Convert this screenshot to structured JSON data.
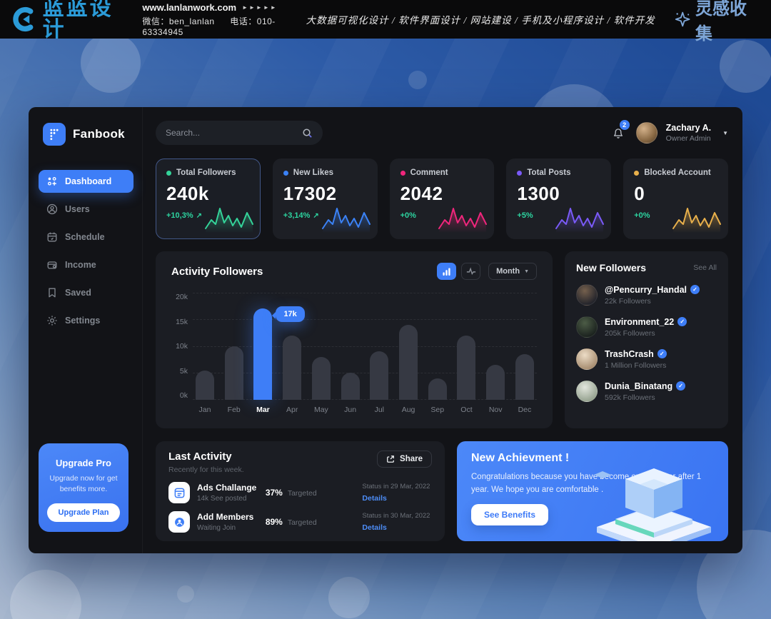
{
  "banner": {
    "brand": "蓝蓝设计",
    "website": "www.lanlanwork.com",
    "arrows": "►►►►►",
    "wechat": "微信：ben_lanlan",
    "phone": "电话：010-63334945",
    "services": "大数据可视化设计 / 软件界面设计 / 网站建设 / 手机及小程序设计 / 软件开发",
    "collect": "灵感收集"
  },
  "app": {
    "logo": "Fanbook",
    "search_placeholder": "Search...",
    "notification_count": "2",
    "user": {
      "name": "Zachary A.",
      "role": "Owner Admin"
    }
  },
  "sidebar": {
    "items": [
      {
        "label": "Dashboard",
        "icon": "dashboard-icon",
        "active": true
      },
      {
        "label": "Users",
        "icon": "users-icon",
        "active": false
      },
      {
        "label": "Schedule",
        "icon": "schedule-icon",
        "active": false
      },
      {
        "label": "Income",
        "icon": "income-icon",
        "active": false
      },
      {
        "label": "Saved",
        "icon": "saved-icon",
        "active": false
      },
      {
        "label": "Settings",
        "icon": "settings-icon",
        "active": false
      }
    ],
    "upgrade": {
      "title": "Upgrade Pro",
      "subtitle": "Upgrade now for get benefits more.",
      "button": "Upgrade Plan"
    }
  },
  "stats": {
    "cards": [
      {
        "label": "Total Followers",
        "value": "240k",
        "change": "+10,3%",
        "accent": "#34d399",
        "trend": true,
        "highlighted": true
      },
      {
        "label": "New Likes",
        "value": "17302",
        "change": "+3,14%",
        "accent": "#3b82f6",
        "trend": true,
        "highlighted": false
      },
      {
        "label": "Comment",
        "value": "2042",
        "change": "+0%",
        "accent": "#f0267c",
        "trend": false,
        "highlighted": false
      },
      {
        "label": "Total Posts",
        "value": "1300",
        "change": "+5%",
        "accent": "#7a5af8",
        "trend": false,
        "highlighted": false
      },
      {
        "label": "Blocked Account",
        "value": "0",
        "change": "+0%",
        "accent": "#e8b04b",
        "trend": false,
        "highlighted": false
      }
    ]
  },
  "chart_data": {
    "type": "bar",
    "title": "Activity Followers",
    "categories": [
      "Jan",
      "Feb",
      "Mar",
      "Apr",
      "May",
      "Jun",
      "Jul",
      "Aug",
      "Sep",
      "Oct",
      "Nov",
      "Dec"
    ],
    "values": [
      5.5,
      10,
      17,
      12,
      8,
      5,
      9,
      14,
      4,
      12,
      6.5,
      8.5
    ],
    "unit": "k",
    "xlabel": "",
    "ylabel": "",
    "ylim": [
      0,
      20
    ],
    "yticks": [
      "20k",
      "15k",
      "10k",
      "5k",
      "0k"
    ],
    "grid": "dashed-horizontal",
    "highlight": {
      "category": "Mar",
      "tooltip": "17k"
    },
    "bar_color": "#363943",
    "highlight_color": "#3e7ef7",
    "controls": {
      "period": "Month"
    }
  },
  "followers": {
    "title": "New Followers",
    "see_all": "See All",
    "items": [
      {
        "name": "@Pencurry_Handal",
        "meta": "22k Followers"
      },
      {
        "name": "Environment_22",
        "meta": "205k Followers"
      },
      {
        "name": "TrashCrash",
        "meta": "1 Million Followers"
      },
      {
        "name": "Dunia_Binatang",
        "meta": "592k Followers"
      }
    ]
  },
  "activity": {
    "title": "Last Activity",
    "subtitle": "Recently for this week.",
    "share": "Share",
    "items": [
      {
        "name": "Ads Challange",
        "meta": "14k See posted",
        "percent": "37%",
        "percent_label": "Targeted",
        "status": "Status in 29 Mar, 2022",
        "link": "Details",
        "icon": "ads-icon",
        "progress": 37
      },
      {
        "name": "Add Members",
        "meta": "Waiting Join",
        "percent": "89%",
        "percent_label": "Targeted",
        "status": "Status in 30 Mar, 2022",
        "link": "Details",
        "icon": "member-icon",
        "progress": 89
      }
    ]
  },
  "achievement": {
    "title": "New Achievment !",
    "text": "Congratulations because you have become our member after 1 year. We hope you are comfortable .",
    "button": "See Benefits"
  },
  "colors": {
    "accent": "#3e7ef7",
    "panel": "#1b1d23",
    "background": "#121317",
    "positive": "#2dd4a0"
  }
}
